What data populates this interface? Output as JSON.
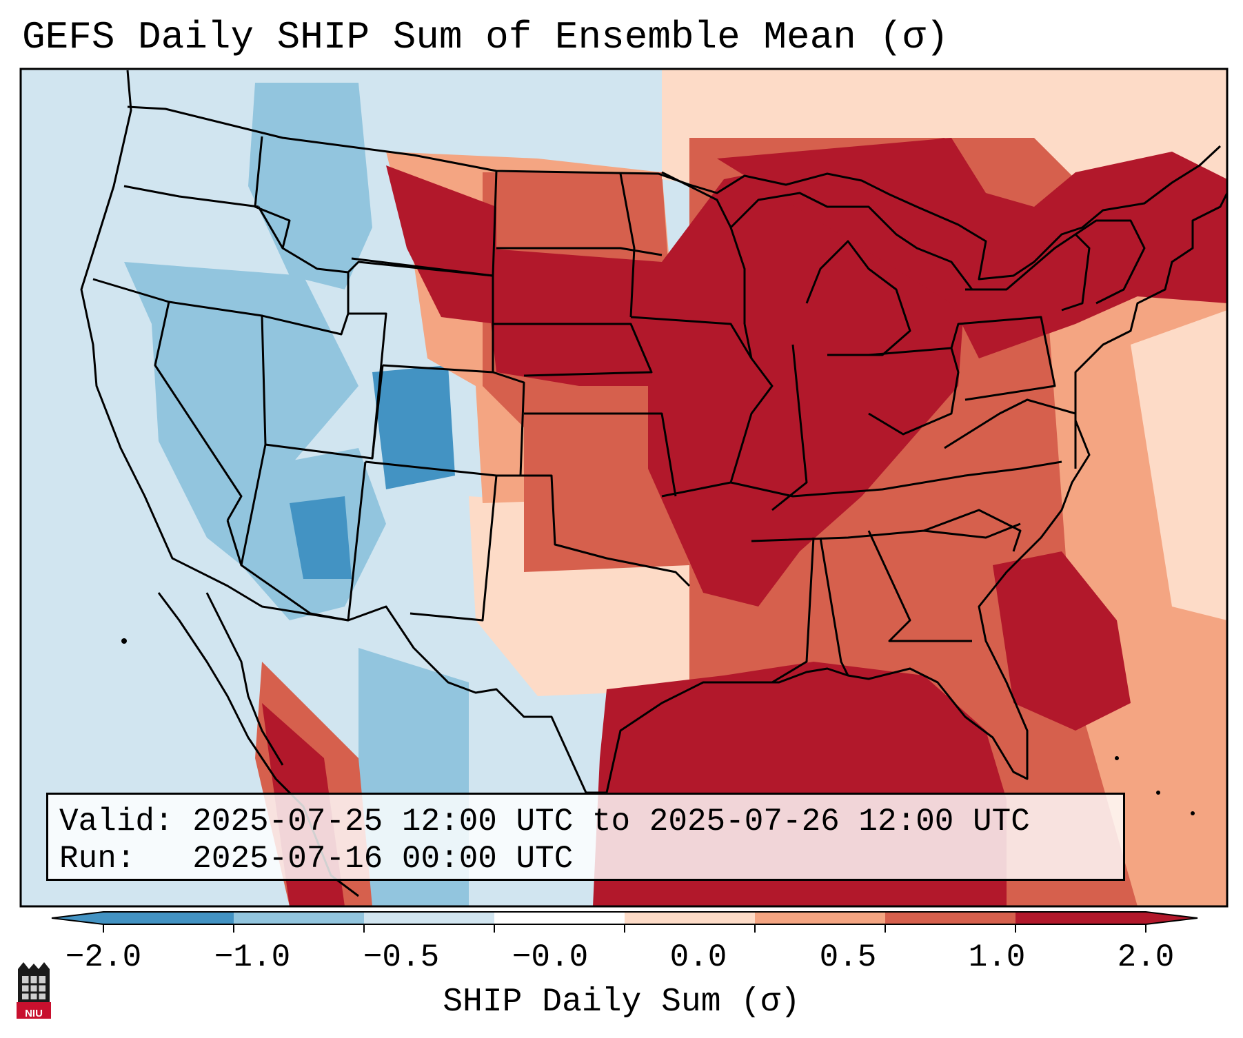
{
  "title": "GEFS Daily SHIP Sum of Ensemble Mean (σ)",
  "info": {
    "valid_line": "Valid: 2025-07-25 12:00 UTC to 2025-07-26 12:00 UTC",
    "run_line": "Run:   2025-07-16 00:00 UTC"
  },
  "colorbar": {
    "label": "SHIP Daily Sum (σ)",
    "ticks": [
      "−2.0",
      "−1.0",
      "−0.5",
      "−0.0",
      "0.0",
      "0.5",
      "1.0",
      "2.0"
    ],
    "colors": [
      "#4393c3",
      "#92c5de",
      "#d1e5f0",
      "#ffffff",
      "#fddbc7",
      "#f4a582",
      "#d6604d",
      "#b2182b"
    ],
    "extend": "both"
  },
  "logo": {
    "text": "NIU"
  },
  "colors": {
    "ocean": "#d1e5f0",
    "very_low": "#4393c3",
    "low": "#92c5de",
    "slightly_low": "#d1e5f0",
    "slightly_high": "#fddbc7",
    "high": "#f4a582",
    "very_high": "#d6604d",
    "extreme": "#b2182b",
    "boundary": "#000000"
  }
}
